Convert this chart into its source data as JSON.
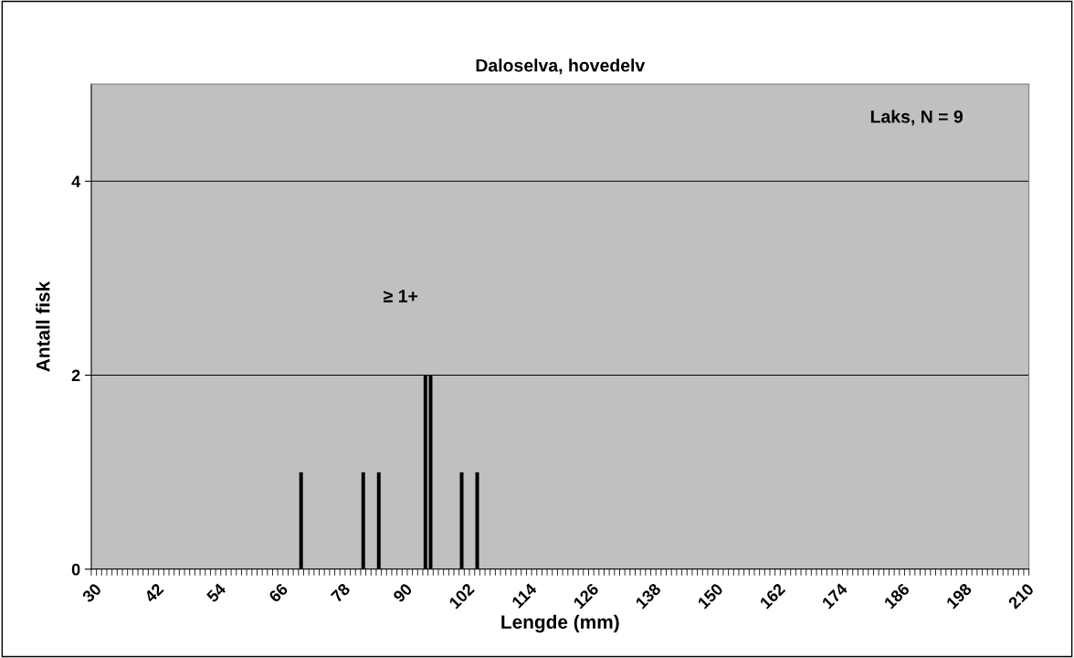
{
  "chart_data": {
    "type": "bar",
    "title": "Daloselva, hovedelv",
    "xlabel": "Lengde (mm)",
    "ylabel": "Antall fisk",
    "categories": [
      "30",
      null,
      null,
      null,
      null,
      null,
      null,
      null,
      null,
      null,
      null,
      null,
      "42",
      null,
      null,
      null,
      null,
      null,
      null,
      null,
      null,
      null,
      null,
      null,
      "54",
      null,
      null,
      null,
      null,
      null,
      null,
      null,
      null,
      null,
      null,
      null,
      "66",
      null,
      null,
      null,
      null,
      null,
      null,
      null,
      null,
      null,
      null,
      null,
      "78",
      null,
      null,
      null,
      null,
      null,
      null,
      null,
      null,
      null,
      null,
      null,
      "90",
      null,
      null,
      null,
      null,
      null,
      null,
      null,
      null,
      null,
      null,
      null,
      "102",
      null,
      null,
      null,
      null,
      null,
      null,
      null,
      null,
      null,
      null,
      null,
      "114",
      null,
      null,
      null,
      null,
      null,
      null,
      null,
      null,
      null,
      null,
      null,
      "126",
      null,
      null,
      null,
      null,
      null,
      null,
      null,
      null,
      null,
      null,
      null,
      "138",
      null,
      null,
      null,
      null,
      null,
      null,
      null,
      null,
      null,
      null,
      null,
      "150",
      null,
      null,
      null,
      null,
      null,
      null,
      null,
      null,
      null,
      null,
      null,
      "162",
      null,
      null,
      null,
      null,
      null,
      null,
      null,
      null,
      null,
      null,
      null,
      "174",
      null,
      null,
      null,
      null,
      null,
      null,
      null,
      null,
      null,
      null,
      null,
      "186",
      null,
      null,
      null,
      null,
      null,
      null,
      null,
      null,
      null,
      null,
      null,
      "198",
      null,
      null,
      null,
      null,
      null,
      null,
      null,
      null,
      null,
      null,
      null,
      "210"
    ],
    "values": [
      0,
      0,
      0,
      0,
      0,
      0,
      0,
      0,
      0,
      0,
      0,
      0,
      0,
      0,
      0,
      0,
      0,
      0,
      0,
      0,
      0,
      0,
      0,
      0,
      0,
      0,
      0,
      0,
      0,
      0,
      0,
      0,
      0,
      0,
      0,
      0,
      0,
      0,
      0,
      0,
      1,
      0,
      0,
      0,
      0,
      0,
      0,
      0,
      0,
      0,
      0,
      0,
      1,
      0,
      0,
      1,
      0,
      0,
      0,
      0,
      0,
      0,
      0,
      0,
      2,
      2,
      0,
      0,
      0,
      0,
      0,
      1,
      0,
      0,
      1,
      0,
      0,
      0,
      0,
      0,
      0,
      0,
      0,
      0,
      0,
      0,
      0,
      0,
      0,
      0,
      0,
      0,
      0,
      0,
      0,
      0,
      0,
      0,
      0,
      0,
      0,
      0,
      0,
      0,
      0,
      0,
      0,
      0,
      0,
      0,
      0,
      0,
      0,
      0,
      0,
      0,
      0,
      0,
      0,
      0,
      0,
      0,
      0,
      0,
      0,
      0,
      0,
      0,
      0,
      0,
      0,
      0,
      0,
      0,
      0,
      0,
      0,
      0,
      0,
      0,
      0,
      0,
      0,
      0,
      0,
      0,
      0,
      0,
      0,
      0,
      0,
      0,
      0,
      0,
      0,
      0,
      0,
      0,
      0,
      0,
      0,
      0,
      0,
      0,
      0,
      0,
      0,
      0,
      0,
      0,
      0,
      0,
      0,
      0,
      0,
      0,
      0,
      0,
      0,
      0,
      0
    ],
    "color": "#000000",
    "ylim": [
      0,
      5
    ],
    "yticks": [
      0,
      2,
      4
    ],
    "grid": "y",
    "annotations": [
      "Laks, N = 9",
      "≥ 1+"
    ]
  }
}
